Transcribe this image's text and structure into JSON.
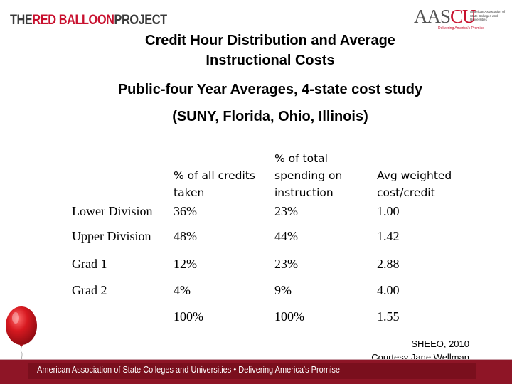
{
  "header": {
    "logo_left": {
      "word1": "THE ",
      "word2": "RED BALLOON",
      "word3": " PROJECT"
    },
    "logo_right": {
      "mark_part1": "AAS",
      "mark_part2": "CU",
      "org_name": "American Association of State Colleges and Universities",
      "tagline": "Delivering America's Promise"
    }
  },
  "titles": {
    "line1": "Credit Hour Distribution and Average",
    "line2": "Instructional Costs",
    "line3": "Public-four Year Averages, 4-state cost study",
    "line4": "(SUNY, Florida, Ohio, Illinois)"
  },
  "table": {
    "headers": [
      [
        "% of all credits",
        "taken"
      ],
      [
        "% of total",
        "spending on",
        "instruction"
      ],
      [
        "Avg weighted",
        "cost/credit"
      ]
    ],
    "rows": [
      {
        "label": "Lower Division",
        "credits": "36%",
        "spending": "23%",
        "cost": "1.00"
      },
      {
        "label": "Upper Division",
        "credits": "48%",
        "spending": "44%",
        "cost": "1.42"
      },
      {
        "label": "Grad 1",
        "credits": "12%",
        "spending": "23%",
        "cost": "2.88"
      },
      {
        "label": "Grad 2",
        "credits": "4%",
        "spending": "9%",
        "cost": "4.00"
      },
      {
        "label": "",
        "credits": "100%",
        "spending": "100%",
        "cost": "1.55"
      }
    ]
  },
  "source": {
    "line1": "SHEEO, 2010",
    "line2": "Courtesy Jane Wellman"
  },
  "footer": {
    "text": "American Association of State Colleges and Universities  •  Delivering America's Promise"
  },
  "colors": {
    "brand_red": "#c8102e",
    "footer_bg": "#8e1526",
    "balloon": "#d71920"
  }
}
